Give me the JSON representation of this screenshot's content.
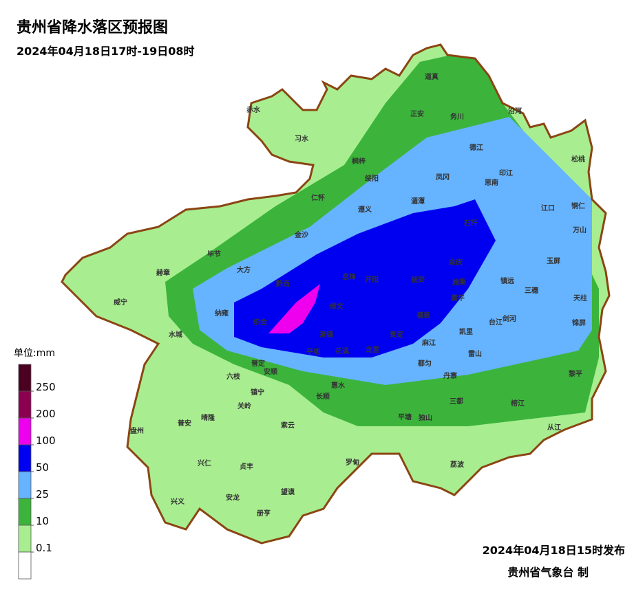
{
  "header": {
    "title": "贵州省降水落区预报图",
    "subtitle": "2024年04月18日17时-19日08时"
  },
  "legend": {
    "unit_label": "单位:mm",
    "ticks": [
      250,
      200,
      100,
      50,
      25,
      10,
      0.1
    ],
    "colors": [
      "#4a0020",
      "#8b0050",
      "#ee00ee",
      "#0000f0",
      "#66b3ff",
      "#3cb43c",
      "#a8ee90",
      "#ffffff"
    ]
  },
  "places": [
    "赤水",
    "习水",
    "道真",
    "正安",
    "务川",
    "沿河",
    "桐梓",
    "德江",
    "松桃",
    "绥阳",
    "凤冈",
    "印江",
    "思南",
    "仁怀",
    "湄潭",
    "遵义",
    "江口",
    "铜仁",
    "石阡",
    "金沙",
    "万山",
    "毕节",
    "大方",
    "余庆",
    "玉屏",
    "赫章",
    "黔西",
    "息烽",
    "开阳",
    "瓮安",
    "施秉",
    "镇远",
    "三穗",
    "天柱",
    "威宁",
    "纳雍",
    "修文",
    "黄平",
    "织金",
    "福泉",
    "剑河",
    "台江",
    "锦屏",
    "水城",
    "清镇",
    "凯里",
    "麻江",
    "贵定",
    "龙里",
    "花溪",
    "平坝",
    "都匀",
    "雷山",
    "普定",
    "安顺",
    "六枝",
    "镇宁",
    "惠水",
    "丹寨",
    "黎平",
    "长顺",
    "关岭",
    "三都",
    "榕江",
    "普安",
    "晴隆",
    "紫云",
    "平塘",
    "独山",
    "从江",
    "盘州",
    "兴仁",
    "贞丰",
    "罗甸",
    "荔波",
    "望谟",
    "兴义",
    "安龙",
    "册亨"
  ],
  "footer": {
    "issued": "2024年04月18日15时发布",
    "publisher": "贵州省气象台 制"
  }
}
